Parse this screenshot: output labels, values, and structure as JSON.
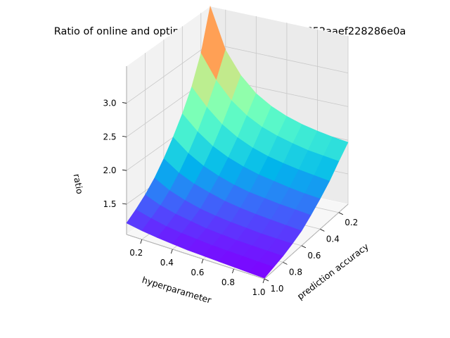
{
  "chart_data": {
    "type": "surface3d",
    "title": "Ratio of online and optimal offline cost for object 652aaef228286e0a",
    "xlabel": "hyperparameter",
    "ylabel": "prediction accuracy",
    "zlabel": "ratio",
    "x_ticks": [
      "0.2",
      "0.4",
      "0.6",
      "0.8",
      "1.0"
    ],
    "y_ticks": [
      "0.2",
      "0.4",
      "0.6",
      "0.8",
      "1.0"
    ],
    "z_ticks": [
      "1.5",
      "2.0",
      "2.5",
      "3.0"
    ],
    "x": [
      0.1,
      0.2,
      0.3,
      0.4,
      0.5,
      0.6,
      0.7,
      0.8,
      0.9,
      1.0
    ],
    "y": [
      0.1,
      0.2,
      0.3,
      0.4,
      0.5,
      0.6,
      0.7,
      0.8,
      0.9,
      1.0
    ],
    "z_rows_by_prediction_accuracy": [
      [
        3.55,
        2.95,
        2.62,
        2.4,
        2.26,
        2.16,
        2.09,
        2.04,
        2.0,
        1.97
      ],
      [
        2.95,
        2.6,
        2.35,
        2.18,
        2.06,
        1.98,
        1.92,
        1.87,
        1.84,
        1.81
      ],
      [
        2.55,
        2.3,
        2.1,
        1.96,
        1.86,
        1.79,
        1.74,
        1.7,
        1.67,
        1.64
      ],
      [
        2.25,
        2.04,
        1.88,
        1.77,
        1.69,
        1.63,
        1.59,
        1.55,
        1.52,
        1.5
      ],
      [
        2.0,
        1.82,
        1.69,
        1.6,
        1.53,
        1.48,
        1.45,
        1.42,
        1.4,
        1.38
      ],
      [
        1.78,
        1.63,
        1.53,
        1.46,
        1.4,
        1.36,
        1.33,
        1.31,
        1.29,
        1.27
      ],
      [
        1.59,
        1.47,
        1.39,
        1.33,
        1.29,
        1.26,
        1.24,
        1.22,
        1.21,
        1.2
      ],
      [
        1.44,
        1.35,
        1.29,
        1.25,
        1.21,
        1.19,
        1.17,
        1.16,
        1.15,
        1.14
      ],
      [
        1.32,
        1.26,
        1.21,
        1.18,
        1.16,
        1.14,
        1.13,
        1.12,
        1.11,
        1.1
      ],
      [
        1.22,
        1.18,
        1.15,
        1.13,
        1.11,
        1.1,
        1.09,
        1.08,
        1.07,
        1.06
      ]
    ],
    "xlim": [
      0.1,
      1.0
    ],
    "ylim": [
      0.1,
      1.0
    ],
    "zlim": [
      1.05,
      3.55
    ],
    "colormap": "rainbow",
    "grid": true
  }
}
